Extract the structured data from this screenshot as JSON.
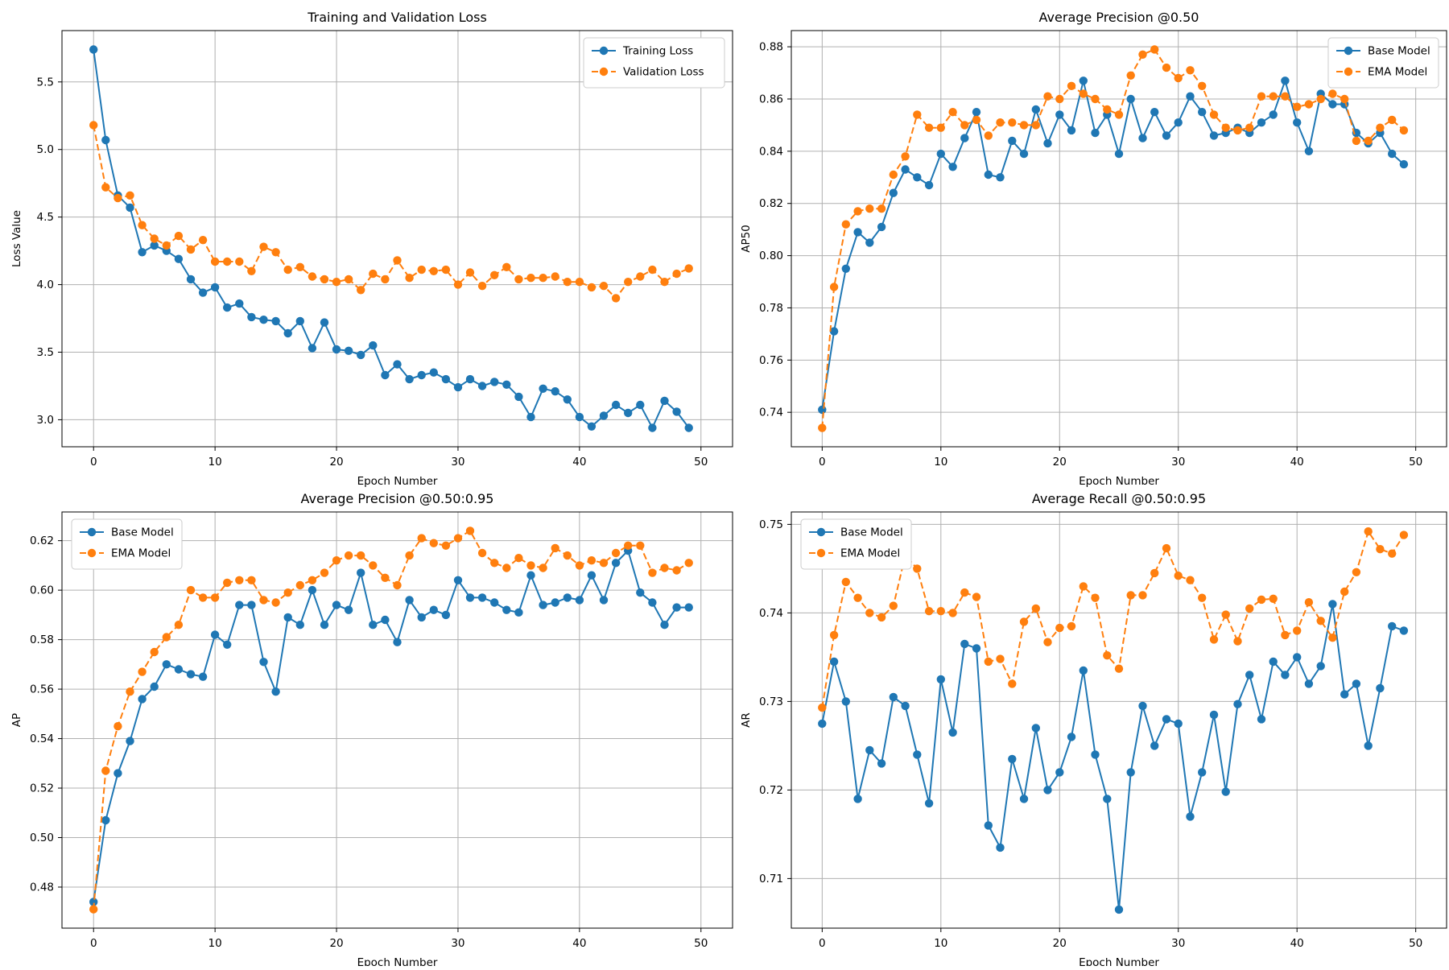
{
  "figure": {
    "background": "#ffffff",
    "blue": "#1f77b4",
    "orange": "#ff7f0e",
    "grid_color": "#b0b0b0",
    "spine_color": "#000000"
  },
  "epochs": [
    0,
    1,
    2,
    3,
    4,
    5,
    6,
    7,
    8,
    9,
    10,
    11,
    12,
    13,
    14,
    15,
    16,
    17,
    18,
    19,
    20,
    21,
    22,
    23,
    24,
    25,
    26,
    27,
    28,
    29,
    30,
    31,
    32,
    33,
    34,
    35,
    36,
    37,
    38,
    39,
    40,
    41,
    42,
    43,
    44,
    45,
    46,
    47,
    48,
    49
  ],
  "chart_data": [
    {
      "id": "loss",
      "type": "line",
      "title": "Training and Validation Loss",
      "xlabel": "Epoch Number",
      "ylabel": "Loss Value",
      "xlim": [
        -2.6,
        52.6
      ],
      "ylim": [
        2.8,
        5.88
      ],
      "xticks": [
        0,
        10,
        20,
        30,
        40,
        50
      ],
      "yticks": [
        3.0,
        3.5,
        4.0,
        4.5,
        5.0,
        5.5
      ],
      "ytick_labels": [
        "3.0",
        "3.5",
        "4.0",
        "4.5",
        "5.0",
        "5.5"
      ],
      "grid": true,
      "legend_position": "upper-right",
      "series": [
        {
          "name": "Training Loss",
          "slug": "training-loss",
          "color": "#1f77b4",
          "line_style": "solid",
          "marker": "circle",
          "values": [
            5.74,
            5.07,
            4.66,
            4.57,
            4.24,
            4.29,
            4.25,
            4.19,
            4.04,
            3.94,
            3.98,
            3.83,
            3.86,
            3.76,
            3.74,
            3.73,
            3.64,
            3.73,
            3.53,
            3.72,
            3.52,
            3.51,
            3.48,
            3.55,
            3.33,
            3.41,
            3.3,
            3.33,
            3.35,
            3.3,
            3.24,
            3.3,
            3.25,
            3.28,
            3.26,
            3.17,
            3.02,
            3.23,
            3.21,
            3.15,
            3.02,
            2.95,
            3.03,
            3.11,
            3.05,
            3.11,
            2.94,
            3.14,
            3.06,
            2.94
          ]
        },
        {
          "name": "Validation Loss",
          "slug": "validation-loss",
          "color": "#ff7f0e",
          "line_style": "dashed",
          "marker": "circle",
          "values": [
            5.18,
            4.72,
            4.64,
            4.66,
            4.44,
            4.34,
            4.29,
            4.36,
            4.26,
            4.33,
            4.17,
            4.17,
            4.17,
            4.1,
            4.28,
            4.24,
            4.11,
            4.13,
            4.06,
            4.04,
            4.02,
            4.04,
            3.96,
            4.08,
            4.04,
            4.18,
            4.05,
            4.11,
            4.1,
            4.11,
            4.0,
            4.09,
            3.99,
            4.07,
            4.13,
            4.04,
            4.05,
            4.05,
            4.06,
            4.02,
            4.02,
            3.98,
            3.99,
            3.9,
            4.02,
            4.06,
            4.11,
            4.02,
            4.08,
            4.12
          ]
        }
      ]
    },
    {
      "id": "ap50",
      "type": "line",
      "title": "Average Precision @0.50",
      "xlabel": "Epoch Number",
      "ylabel": "AP50",
      "xlim": [
        -2.6,
        52.6
      ],
      "ylim": [
        0.7268,
        0.8862
      ],
      "xticks": [
        0,
        10,
        20,
        30,
        40,
        50
      ],
      "yticks": [
        0.74,
        0.76,
        0.78,
        0.8,
        0.82,
        0.84,
        0.86,
        0.88
      ],
      "ytick_labels": [
        "0.74",
        "0.76",
        "0.78",
        "0.80",
        "0.82",
        "0.84",
        "0.86",
        "0.88"
      ],
      "grid": true,
      "legend_position": "upper-right",
      "series": [
        {
          "name": "Base Model",
          "slug": "base-model",
          "color": "#1f77b4",
          "line_style": "solid",
          "marker": "circle",
          "values": [
            0.741,
            0.771,
            0.795,
            0.809,
            0.805,
            0.811,
            0.824,
            0.833,
            0.83,
            0.827,
            0.839,
            0.834,
            0.845,
            0.855,
            0.831,
            0.83,
            0.844,
            0.839,
            0.856,
            0.843,
            0.854,
            0.848,
            0.867,
            0.847,
            0.854,
            0.839,
            0.86,
            0.845,
            0.855,
            0.846,
            0.851,
            0.861,
            0.855,
            0.846,
            0.847,
            0.849,
            0.847,
            0.851,
            0.854,
            0.867,
            0.851,
            0.84,
            0.862,
            0.858,
            0.858,
            0.847,
            0.843,
            0.847,
            0.839,
            0.835
          ]
        },
        {
          "name": "EMA Model",
          "slug": "ema-model",
          "color": "#ff7f0e",
          "line_style": "dashed",
          "marker": "circle",
          "values": [
            0.734,
            0.788,
            0.812,
            0.817,
            0.818,
            0.818,
            0.831,
            0.838,
            0.854,
            0.849,
            0.849,
            0.855,
            0.85,
            0.852,
            0.846,
            0.851,
            0.851,
            0.85,
            0.85,
            0.861,
            0.86,
            0.865,
            0.862,
            0.86,
            0.856,
            0.854,
            0.869,
            0.877,
            0.879,
            0.872,
            0.868,
            0.871,
            0.865,
            0.854,
            0.849,
            0.848,
            0.849,
            0.861,
            0.861,
            0.861,
            0.857,
            0.858,
            0.86,
            0.862,
            0.86,
            0.844,
            0.844,
            0.849,
            0.852,
            0.848
          ]
        }
      ]
    },
    {
      "id": "ap",
      "type": "line",
      "title": "Average Precision @0.50:0.95",
      "xlabel": "Epoch Number",
      "ylabel": "AP",
      "xlim": [
        -2.6,
        52.6
      ],
      "ylim": [
        0.4634,
        0.6316
      ],
      "xticks": [
        0,
        10,
        20,
        30,
        40,
        50
      ],
      "yticks": [
        0.48,
        0.5,
        0.52,
        0.54,
        0.56,
        0.58,
        0.6,
        0.62
      ],
      "ytick_labels": [
        "0.48",
        "0.50",
        "0.52",
        "0.54",
        "0.56",
        "0.58",
        "0.60",
        "0.62"
      ],
      "grid": true,
      "legend_position": "upper-left",
      "series": [
        {
          "name": "Base Model",
          "slug": "base-model",
          "color": "#1f77b4",
          "line_style": "solid",
          "marker": "circle",
          "values": [
            0.474,
            0.507,
            0.526,
            0.539,
            0.556,
            0.561,
            0.57,
            0.568,
            0.566,
            0.565,
            0.582,
            0.578,
            0.594,
            0.594,
            0.571,
            0.559,
            0.589,
            0.586,
            0.6,
            0.586,
            0.594,
            0.592,
            0.607,
            0.586,
            0.588,
            0.579,
            0.596,
            0.589,
            0.592,
            0.59,
            0.604,
            0.597,
            0.597,
            0.595,
            0.592,
            0.591,
            0.606,
            0.594,
            0.595,
            0.597,
            0.596,
            0.606,
            0.596,
            0.611,
            0.616,
            0.599,
            0.595,
            0.586,
            0.593,
            0.593
          ]
        },
        {
          "name": "EMA Model",
          "slug": "ema-model",
          "color": "#ff7f0e",
          "line_style": "dashed",
          "marker": "circle",
          "values": [
            0.471,
            0.527,
            0.545,
            0.559,
            0.567,
            0.575,
            0.581,
            0.586,
            0.6,
            0.597,
            0.597,
            0.603,
            0.604,
            0.604,
            0.596,
            0.595,
            0.599,
            0.602,
            0.604,
            0.607,
            0.612,
            0.614,
            0.614,
            0.61,
            0.605,
            0.602,
            0.614,
            0.621,
            0.619,
            0.618,
            0.621,
            0.624,
            0.615,
            0.611,
            0.609,
            0.613,
            0.61,
            0.609,
            0.617,
            0.614,
            0.61,
            0.612,
            0.611,
            0.615,
            0.618,
            0.618,
            0.607,
            0.609,
            0.608,
            0.611
          ]
        }
      ]
    },
    {
      "id": "ar",
      "type": "line",
      "title": "Average Recall @0.50:0.95",
      "xlabel": "Epoch Number",
      "ylabel": "AR",
      "xlim": [
        -2.6,
        52.6
      ],
      "ylim": [
        0.7044,
        0.7514
      ],
      "xticks": [
        0,
        10,
        20,
        30,
        40,
        50
      ],
      "yticks": [
        0.71,
        0.72,
        0.73,
        0.74,
        0.75
      ],
      "ytick_labels": [
        "0.71",
        "0.72",
        "0.73",
        "0.74",
        "0.75"
      ],
      "grid": true,
      "legend_position": "upper-left",
      "series": [
        {
          "name": "Base Model",
          "slug": "base-model",
          "color": "#1f77b4",
          "line_style": "solid",
          "marker": "circle",
          "values": [
            0.7275,
            0.7345,
            0.73,
            0.719,
            0.7245,
            0.723,
            0.7305,
            0.7295,
            0.724,
            0.7185,
            0.7325,
            0.7265,
            0.7365,
            0.736,
            0.716,
            0.7135,
            0.7235,
            0.719,
            0.727,
            0.72,
            0.722,
            0.726,
            0.7335,
            0.724,
            0.719,
            0.7065,
            0.722,
            0.7295,
            0.725,
            0.728,
            0.7275,
            0.717,
            0.722,
            0.7285,
            0.7198,
            0.7297,
            0.733,
            0.728,
            0.7345,
            0.733,
            0.735,
            0.732,
            0.734,
            0.741,
            0.7308,
            0.732,
            0.725,
            0.7315,
            0.7385,
            0.738
          ]
        },
        {
          "name": "EMA Model",
          "slug": "ema-model",
          "color": "#ff7f0e",
          "line_style": "dashed",
          "marker": "circle",
          "values": [
            0.7293,
            0.7375,
            0.7435,
            0.7417,
            0.74,
            0.7395,
            0.7408,
            0.7465,
            0.745,
            0.7402,
            0.7402,
            0.74,
            0.7423,
            0.7418,
            0.7345,
            0.7348,
            0.732,
            0.739,
            0.7405,
            0.7367,
            0.7383,
            0.7385,
            0.743,
            0.7417,
            0.7352,
            0.7337,
            0.742,
            0.742,
            0.7445,
            0.7473,
            0.7442,
            0.7437,
            0.7417,
            0.737,
            0.7398,
            0.7368,
            0.7405,
            0.7415,
            0.7416,
            0.7375,
            0.738,
            0.7412,
            0.7391,
            0.7372,
            0.7424,
            0.7446,
            0.7492,
            0.7472,
            0.7467,
            0.7488
          ]
        }
      ]
    }
  ]
}
